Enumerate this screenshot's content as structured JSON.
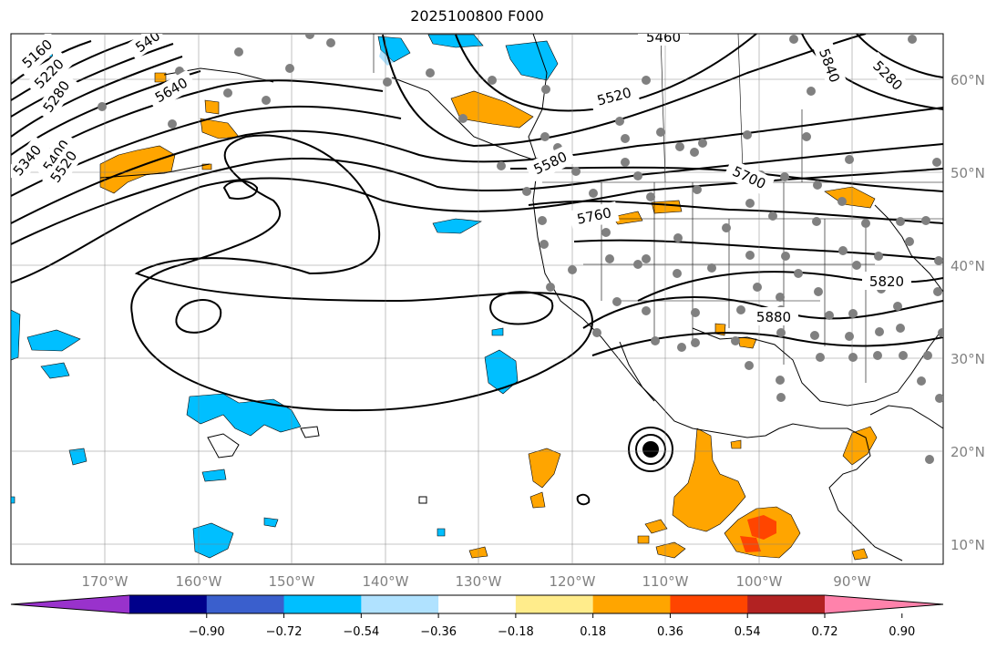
{
  "title": "2025100800 F000",
  "map": {
    "lon_ticks": [
      "170°W",
      "160°W",
      "150°W",
      "140°W",
      "130°W",
      "120°W",
      "110°W",
      "100°W",
      "90°W"
    ],
    "lat_ticks": [
      "10°N",
      "20°N",
      "30°N",
      "40°N",
      "50°N",
      "60°N"
    ],
    "lon_range": [
      -180,
      -80
    ],
    "lat_range": [
      8,
      65
    ],
    "grid": true
  },
  "contour_labels": [
    "5160",
    "5220",
    "5280",
    "5340",
    "5400",
    "5520",
    "5640",
    "5460",
    "5520",
    "5580",
    "5700",
    "5760",
    "5820",
    "5880",
    "5840",
    "5280",
    "540"
  ],
  "colorbar": {
    "ticks": [
      "−0.90",
      "−0.72",
      "−0.54",
      "−0.36",
      "−0.18",
      "0.18",
      "0.36",
      "0.54",
      "0.72",
      "0.90"
    ],
    "colors": [
      "#9932CC",
      "#00008B",
      "#3A5FCD",
      "#00BFFF",
      "#B0E2FF",
      "#FFFFFF",
      "#FFEC8B",
      "#FFA500",
      "#FF4500",
      "#B22222",
      "#FF82AB"
    ],
    "extend": "both"
  }
}
